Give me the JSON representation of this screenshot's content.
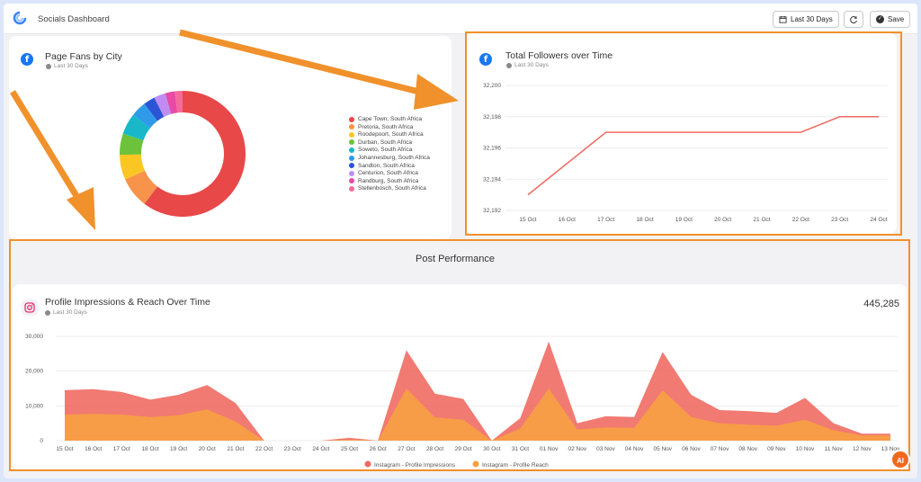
{
  "app": {
    "title": "Socials Dashboard"
  },
  "toolbar": {
    "date_range_label": "Last 30 Days",
    "save_label": "Save"
  },
  "colors": {
    "accent_orange": "#f0912b",
    "impressions": "#ef6b63",
    "reach": "#f7a043",
    "facebook": "#1877f2"
  },
  "fans_card": {
    "title": "Page Fans by City",
    "subtitle": "Last 30 Days",
    "chart_data": {
      "type": "pie",
      "labels": [
        "Cape Town, South Africa",
        "Pretoria, South Africa",
        "Roodepoort, South Africa",
        "Durban, South Africa",
        "Soweto, South Africa",
        "Johannesburg, South Africa",
        "Sandton, South Africa",
        "Centurion, South Africa",
        "Randburg, South Africa",
        "Stellenbosch, South Africa"
      ],
      "values": [
        61,
        8,
        6.5,
        5.5,
        5.5,
        4,
        3,
        3,
        2.5,
        2
      ],
      "colors": [
        "#e84848",
        "#f7934a",
        "#f9c623",
        "#6cc23a",
        "#18b8c9",
        "#2f9be8",
        "#2a55d6",
        "#c08cf3",
        "#e84aa5",
        "#f46a9b"
      ],
      "legend": "right"
    }
  },
  "followers_card": {
    "title": "Total Followers over Time",
    "subtitle": "Last 30 Days",
    "chart_data": {
      "type": "line",
      "x": [
        "15 Oct",
        "16 Oct",
        "17 Oct",
        "18 Oct",
        "19 Oct",
        "20 Oct",
        "21 Oct",
        "22 Oct",
        "23 Oct",
        "24 Oct"
      ],
      "values": [
        32193,
        32195,
        32197,
        32197,
        32197,
        32197,
        32197,
        32197,
        32198,
        32198
      ],
      "yticks": [
        "32,200",
        "32,198",
        "32,196",
        "32,194",
        "32,192"
      ],
      "ylim": [
        32192,
        32200
      ],
      "color": "#ef6b63"
    }
  },
  "post_performance": {
    "title": "Post Performance",
    "card_title": "Profile Impressions & Reach Over Time",
    "subtitle": "Last 30 Days",
    "total": "445,285",
    "chart_data": {
      "type": "area",
      "x": [
        "15 Oct",
        "16 Oct",
        "17 Oct",
        "18 Oct",
        "19 Oct",
        "20 Oct",
        "21 Oct",
        "22 Oct",
        "23 Oct",
        "24 Oct",
        "25 Oct",
        "26 Oct",
        "27 Oct",
        "28 Oct",
        "29 Oct",
        "30 Oct",
        "31 Oct",
        "01 Nov",
        "02 Nov",
        "03 Nov",
        "04 Nov",
        "05 Nov",
        "06 Nov",
        "07 Nov",
        "08 Nov",
        "09 Nov",
        "10 Nov",
        "11 Nov",
        "12 Nov",
        "13 Nov"
      ],
      "series": [
        {
          "name": "Instagram - Profile Impressions",
          "color": "#ef6b63",
          "values": [
            14500,
            14800,
            14000,
            11800,
            13200,
            16000,
            10800,
            0,
            0,
            0,
            800,
            0,
            26000,
            13500,
            12000,
            0,
            6500,
            28500,
            5000,
            7000,
            6800,
            25500,
            13200,
            8800,
            8500,
            8000,
            12300,
            5000,
            2000,
            2000
          ]
        },
        {
          "name": "Instagram - Profile Reach",
          "color": "#f7a043",
          "values": [
            7500,
            7700,
            7500,
            6800,
            7300,
            9000,
            5500,
            0,
            0,
            0,
            300,
            0,
            15000,
            6700,
            6000,
            0,
            3500,
            15000,
            3200,
            3800,
            3700,
            14500,
            6800,
            5000,
            4600,
            4300,
            6000,
            3000,
            1500,
            1500
          ]
        }
      ],
      "yticks": [
        "30,000",
        "20,000",
        "10,000",
        "0"
      ],
      "ylim": [
        0,
        30000
      ],
      "legend": "bottom"
    }
  }
}
